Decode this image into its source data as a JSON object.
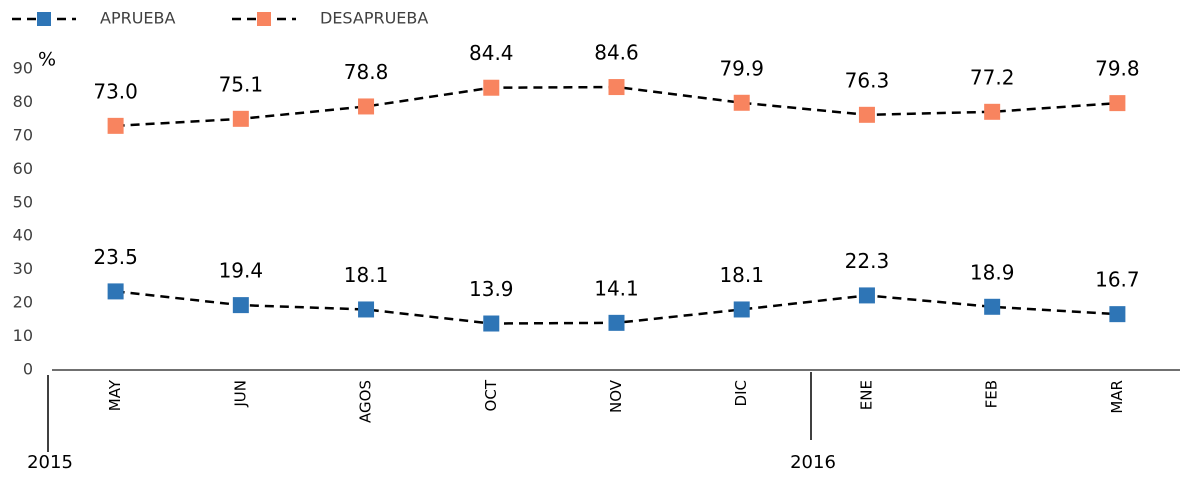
{
  "chart_data": {
    "type": "line",
    "y_label": "%",
    "categories": [
      "MAY",
      "JUN",
      "AGOS",
      "OCT",
      "NOV",
      "DIC",
      "ENE",
      "FEB",
      "MAR"
    ],
    "x_groups": [
      "2015",
      "2016"
    ],
    "series": [
      {
        "name": "APRUEBA",
        "color": "#2e75b6",
        "values": [
          23.5,
          19.4,
          18.1,
          13.9,
          14.1,
          18.1,
          22.3,
          18.9,
          16.7
        ],
        "value_labels": [
          "23.5",
          "19.4",
          "18.1",
          "13.9",
          "14.1",
          "18.1",
          "22.3",
          "18.9",
          "16.7"
        ]
      },
      {
        "name": "DESAPRUEBA",
        "color": "#f8845f",
        "values": [
          73.0,
          75.1,
          78.8,
          84.4,
          84.6,
          79.9,
          76.3,
          77.2,
          79.8
        ],
        "value_labels": [
          "73.0",
          "75.1",
          "78.8",
          "84.4",
          "84.6",
          "79.9",
          "76.3",
          "77.2",
          "79.8"
        ]
      }
    ],
    "ylim": [
      0,
      90
    ],
    "yticks": [
      0,
      10,
      20,
      30,
      40,
      50,
      60,
      70,
      80,
      90
    ],
    "legend": "top-left"
  }
}
